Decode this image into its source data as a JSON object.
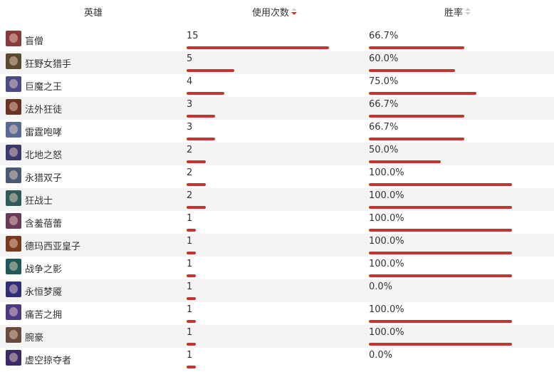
{
  "header": {
    "hero_label": "英雄",
    "uses_label": "使用次数",
    "winrate_label": "胜率"
  },
  "bar_color": "#c83232",
  "max_uses": 15,
  "rows": [
    {
      "name": "盲僧",
      "uses": "15",
      "uses_num": 15,
      "winrate": "66.7%",
      "winrate_num": 66.7,
      "avatar_color": "#8a3a3a",
      "icon": "champion-portrait"
    },
    {
      "name": "狂野女猎手",
      "uses": "5",
      "uses_num": 5,
      "winrate": "60.0%",
      "winrate_num": 60.0,
      "avatar_color": "#5a4a2e",
      "icon": "champion-portrait"
    },
    {
      "name": "巨魔之王",
      "uses": "4",
      "uses_num": 4,
      "winrate": "75.0%",
      "winrate_num": 75.0,
      "avatar_color": "#4a4a86",
      "icon": "champion-portrait"
    },
    {
      "name": "法外狂徒",
      "uses": "3",
      "uses_num": 3,
      "winrate": "66.7%",
      "winrate_num": 66.7,
      "avatar_color": "#6a3424",
      "icon": "champion-portrait"
    },
    {
      "name": "雷霆咆哮",
      "uses": "3",
      "uses_num": 3,
      "winrate": "66.7%",
      "winrate_num": 66.7,
      "avatar_color": "#5a6a96",
      "icon": "champion-portrait"
    },
    {
      "name": "北地之怒",
      "uses": "2",
      "uses_num": 2,
      "winrate": "50.0%",
      "winrate_num": 50.0,
      "avatar_color": "#3a3a6e",
      "icon": "champion-portrait"
    },
    {
      "name": "永猎双子",
      "uses": "2",
      "uses_num": 2,
      "winrate": "100.0%",
      "winrate_num": 100.0,
      "avatar_color": "#4a5a76",
      "icon": "champion-portrait"
    },
    {
      "name": "狂战士",
      "uses": "2",
      "uses_num": 2,
      "winrate": "100.0%",
      "winrate_num": 100.0,
      "avatar_color": "#2e5a5a",
      "icon": "champion-portrait"
    },
    {
      "name": "含羞蓓蕾",
      "uses": "1",
      "uses_num": 1,
      "winrate": "100.0%",
      "winrate_num": 100.0,
      "avatar_color": "#6a3a5a",
      "icon": "champion-portrait"
    },
    {
      "name": "德玛西亚皇子",
      "uses": "1",
      "uses_num": 1,
      "winrate": "100.0%",
      "winrate_num": 100.0,
      "avatar_color": "#7a3a1e",
      "icon": "champion-portrait"
    },
    {
      "name": "战争之影",
      "uses": "1",
      "uses_num": 1,
      "winrate": "100.0%",
      "winrate_num": 100.0,
      "avatar_color": "#1e5a5a",
      "icon": "champion-portrait"
    },
    {
      "name": "永恒梦魇",
      "uses": "1",
      "uses_num": 1,
      "winrate": "0.0%",
      "winrate_num": 0.0,
      "avatar_color": "#2e2e7a",
      "icon": "champion-portrait"
    },
    {
      "name": "痛苦之拥",
      "uses": "1",
      "uses_num": 1,
      "winrate": "100.0%",
      "winrate_num": 100.0,
      "avatar_color": "#4a3a86",
      "icon": "champion-portrait"
    },
    {
      "name": "腕豪",
      "uses": "1",
      "uses_num": 1,
      "winrate": "100.0%",
      "winrate_num": 100.0,
      "avatar_color": "#6a4a3e",
      "icon": "champion-portrait"
    },
    {
      "name": "虚空掠夺者",
      "uses": "1",
      "uses_num": 1,
      "winrate": "0.0%",
      "winrate_num": 0.0,
      "avatar_color": "#3a2a6a",
      "icon": "champion-portrait"
    }
  ]
}
